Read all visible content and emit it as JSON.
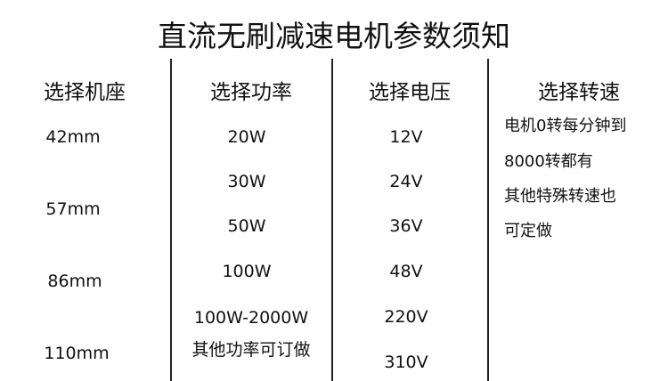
{
  "title": "直流无刷减速电机参数须知",
  "columns": [
    {
      "header": "选择机座",
      "values": [
        "42mm",
        "57mm",
        "86mm",
        "110mm"
      ]
    },
    {
      "header": "选择功率",
      "values": [
        "20W",
        "30W",
        "50W",
        "100W",
        "100W-2000W",
        "其他功率可订做"
      ]
    },
    {
      "header": "选择电压",
      "values": [
        "12V",
        "24V",
        "36V",
        "48V",
        "220V",
        "310V"
      ]
    },
    {
      "header": "选择转速",
      "lines": [
        "电机0转每分钟到",
        "8000转都有",
        "其他特殊转速也",
        "可定做"
      ]
    }
  ]
}
